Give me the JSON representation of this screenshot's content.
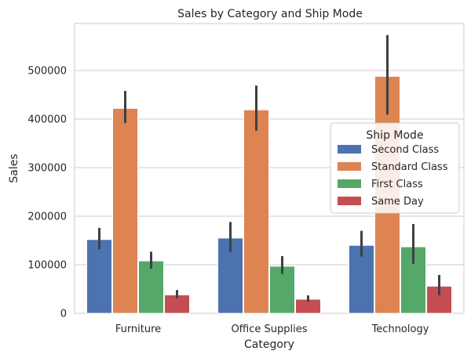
{
  "chart_data": {
    "type": "bar",
    "title": "Sales by Category and Ship Mode",
    "xlabel": "Category",
    "ylabel": "Sales",
    "categories": [
      "Furniture",
      "Office Supplies",
      "Technology"
    ],
    "ylim": [
      0,
      600000
    ],
    "yticks": [
      0,
      100000,
      200000,
      300000,
      400000,
      500000
    ],
    "grid": "horizontal",
    "legend": {
      "title": "Ship Mode",
      "placement": "center-right"
    },
    "series": [
      {
        "name": "Second Class",
        "color": "#4c72b0",
        "values": [
          152000,
          155000,
          140000
        ],
        "ci_low": [
          132000,
          126000,
          117000
        ],
        "ci_high": [
          176000,
          188000,
          170000
        ]
      },
      {
        "name": "Standard Class",
        "color": "#dd8452",
        "values": [
          422000,
          419000,
          488000
        ],
        "ci_low": [
          392000,
          376000,
          409000
        ],
        "ci_high": [
          458000,
          469000,
          573000
        ]
      },
      {
        "name": "First Class",
        "color": "#55a868",
        "values": [
          108000,
          97000,
          137000
        ],
        "ci_low": [
          92000,
          81000,
          102000
        ],
        "ci_high": [
          127000,
          118000,
          184000
        ]
      },
      {
        "name": "Same Day",
        "color": "#c44e52",
        "values": [
          38000,
          29000,
          56000
        ],
        "ci_low": [
          31000,
          24000,
          37000
        ],
        "ci_high": [
          48000,
          37000,
          79000
        ]
      }
    ]
  }
}
